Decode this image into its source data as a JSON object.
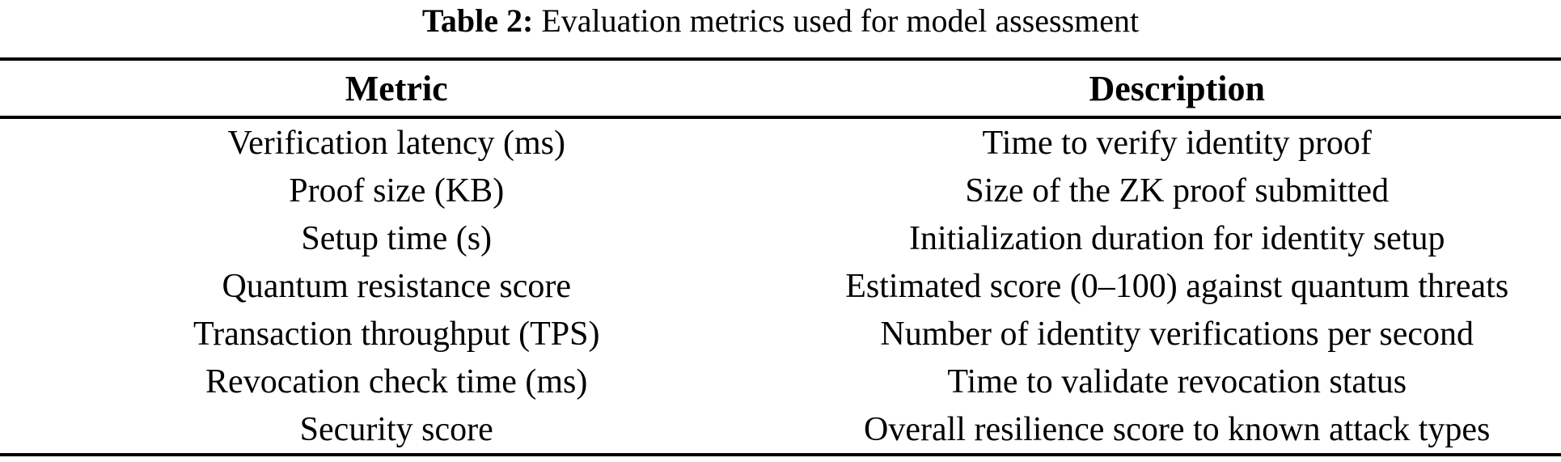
{
  "caption": {
    "label": "Table 2:",
    "text": " Evaluation metrics used for model assessment"
  },
  "table": {
    "headers": {
      "metric": "Metric",
      "description": "Description"
    },
    "rows": [
      {
        "metric": "Verification latency (ms)",
        "description": "Time to verify identity proof"
      },
      {
        "metric": "Proof size (KB)",
        "description": "Size of the ZK proof submitted"
      },
      {
        "metric": "Setup time (s)",
        "description": "Initialization duration for identity setup"
      },
      {
        "metric": "Quantum resistance score",
        "description": "Estimated score (0–100) against quantum threats"
      },
      {
        "metric": "Transaction throughput (TPS)",
        "description": "Number of identity verifications per second"
      },
      {
        "metric": "Revocation check time (ms)",
        "description": "Time to validate revocation status"
      },
      {
        "metric": "Security score",
        "description": "Overall resilience score to known attack types"
      }
    ]
  },
  "colors": {
    "text": "#000000",
    "background": "#ffffff",
    "rule": "#000000"
  }
}
